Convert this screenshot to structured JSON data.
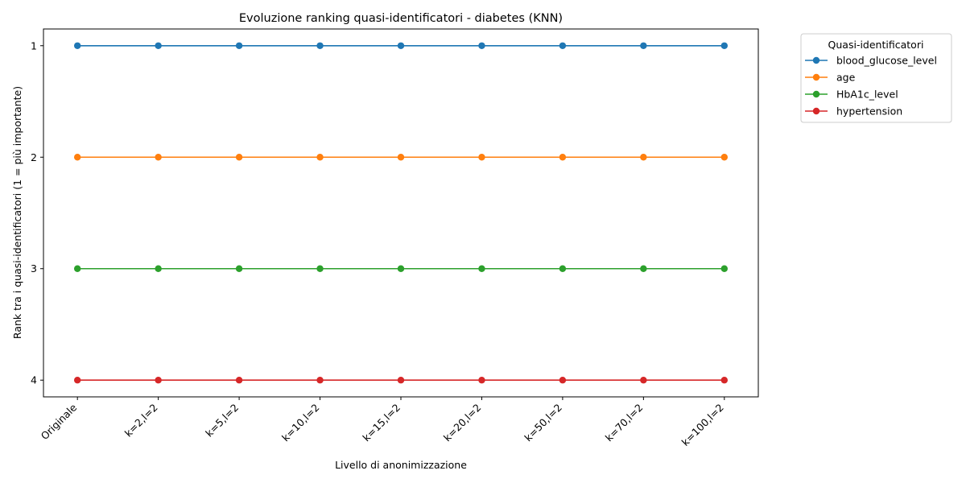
{
  "chart_data": {
    "type": "line",
    "title": "Evoluzione ranking quasi-identificatori - diabetes (KNN)",
    "xlabel": "Livello di anonimizzazione",
    "ylabel": "Rank tra i quasi-identificatori (1 = più importante)",
    "categories": [
      "Originale",
      "k=2,l=2",
      "k=5,l=2",
      "k=10,l=2",
      "k=15,l=2",
      "k=20,l=2",
      "k=50,l=2",
      "k=70,l=2",
      "k=100,l=2"
    ],
    "y_ticks": [
      "1",
      "2",
      "3",
      "4"
    ],
    "y_inverted": true,
    "ylim": [
      4.15,
      0.85
    ],
    "grid": false,
    "legend": {
      "title": "Quasi-identificatori",
      "placement": "outside-top-right"
    },
    "series": [
      {
        "name": "blood_glucose_level",
        "color": "#1f77b4",
        "values": [
          1,
          1,
          1,
          1,
          1,
          1,
          1,
          1,
          1
        ]
      },
      {
        "name": "age",
        "color": "#ff7f0e",
        "values": [
          2,
          2,
          2,
          2,
          2,
          2,
          2,
          2,
          2
        ]
      },
      {
        "name": "HbA1c_level",
        "color": "#2ca02c",
        "values": [
          3,
          3,
          3,
          3,
          3,
          3,
          3,
          3,
          3
        ]
      },
      {
        "name": "hypertension",
        "color": "#d62728",
        "values": [
          4,
          4,
          4,
          4,
          4,
          4,
          4,
          4,
          4
        ]
      }
    ]
  }
}
